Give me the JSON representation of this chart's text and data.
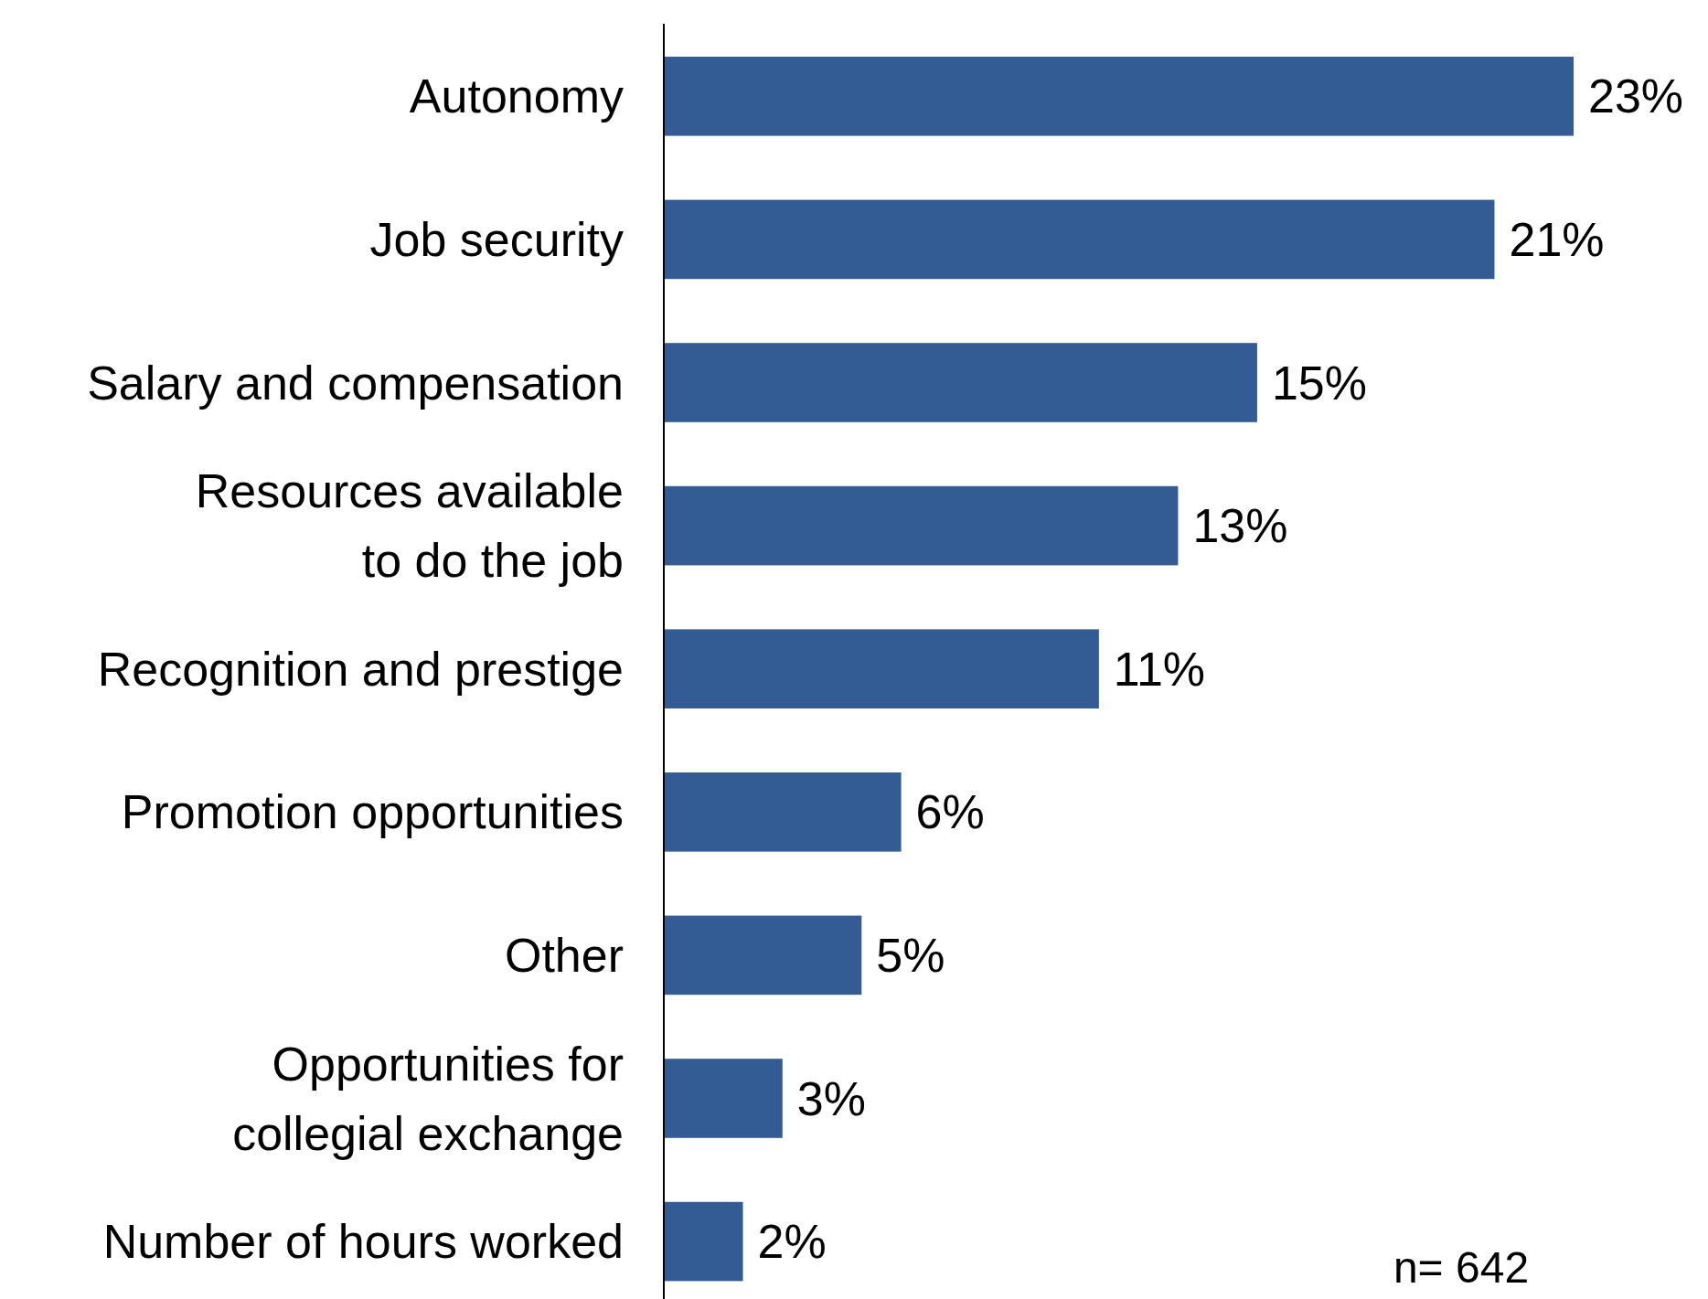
{
  "chart_data": {
    "type": "bar",
    "orientation": "horizontal",
    "categories": [
      "Autonomy",
      "Job security",
      "Salary and compensation",
      "Resources available to do the job",
      "Recognition and prestige",
      "Promotion opportunities",
      "Other",
      "Opportunities for collegial exchange",
      "Number of hours worked"
    ],
    "values": [
      23,
      21,
      15,
      13,
      11,
      6,
      5,
      3,
      2
    ],
    "value_labels": [
      "23%",
      "21%",
      "15%",
      "13%",
      "11%",
      "6%",
      "5%",
      "3%",
      "2%"
    ],
    "color": "#335b94",
    "tick_labels": "y",
    "annotations": [
      "n= 642"
    ]
  }
}
